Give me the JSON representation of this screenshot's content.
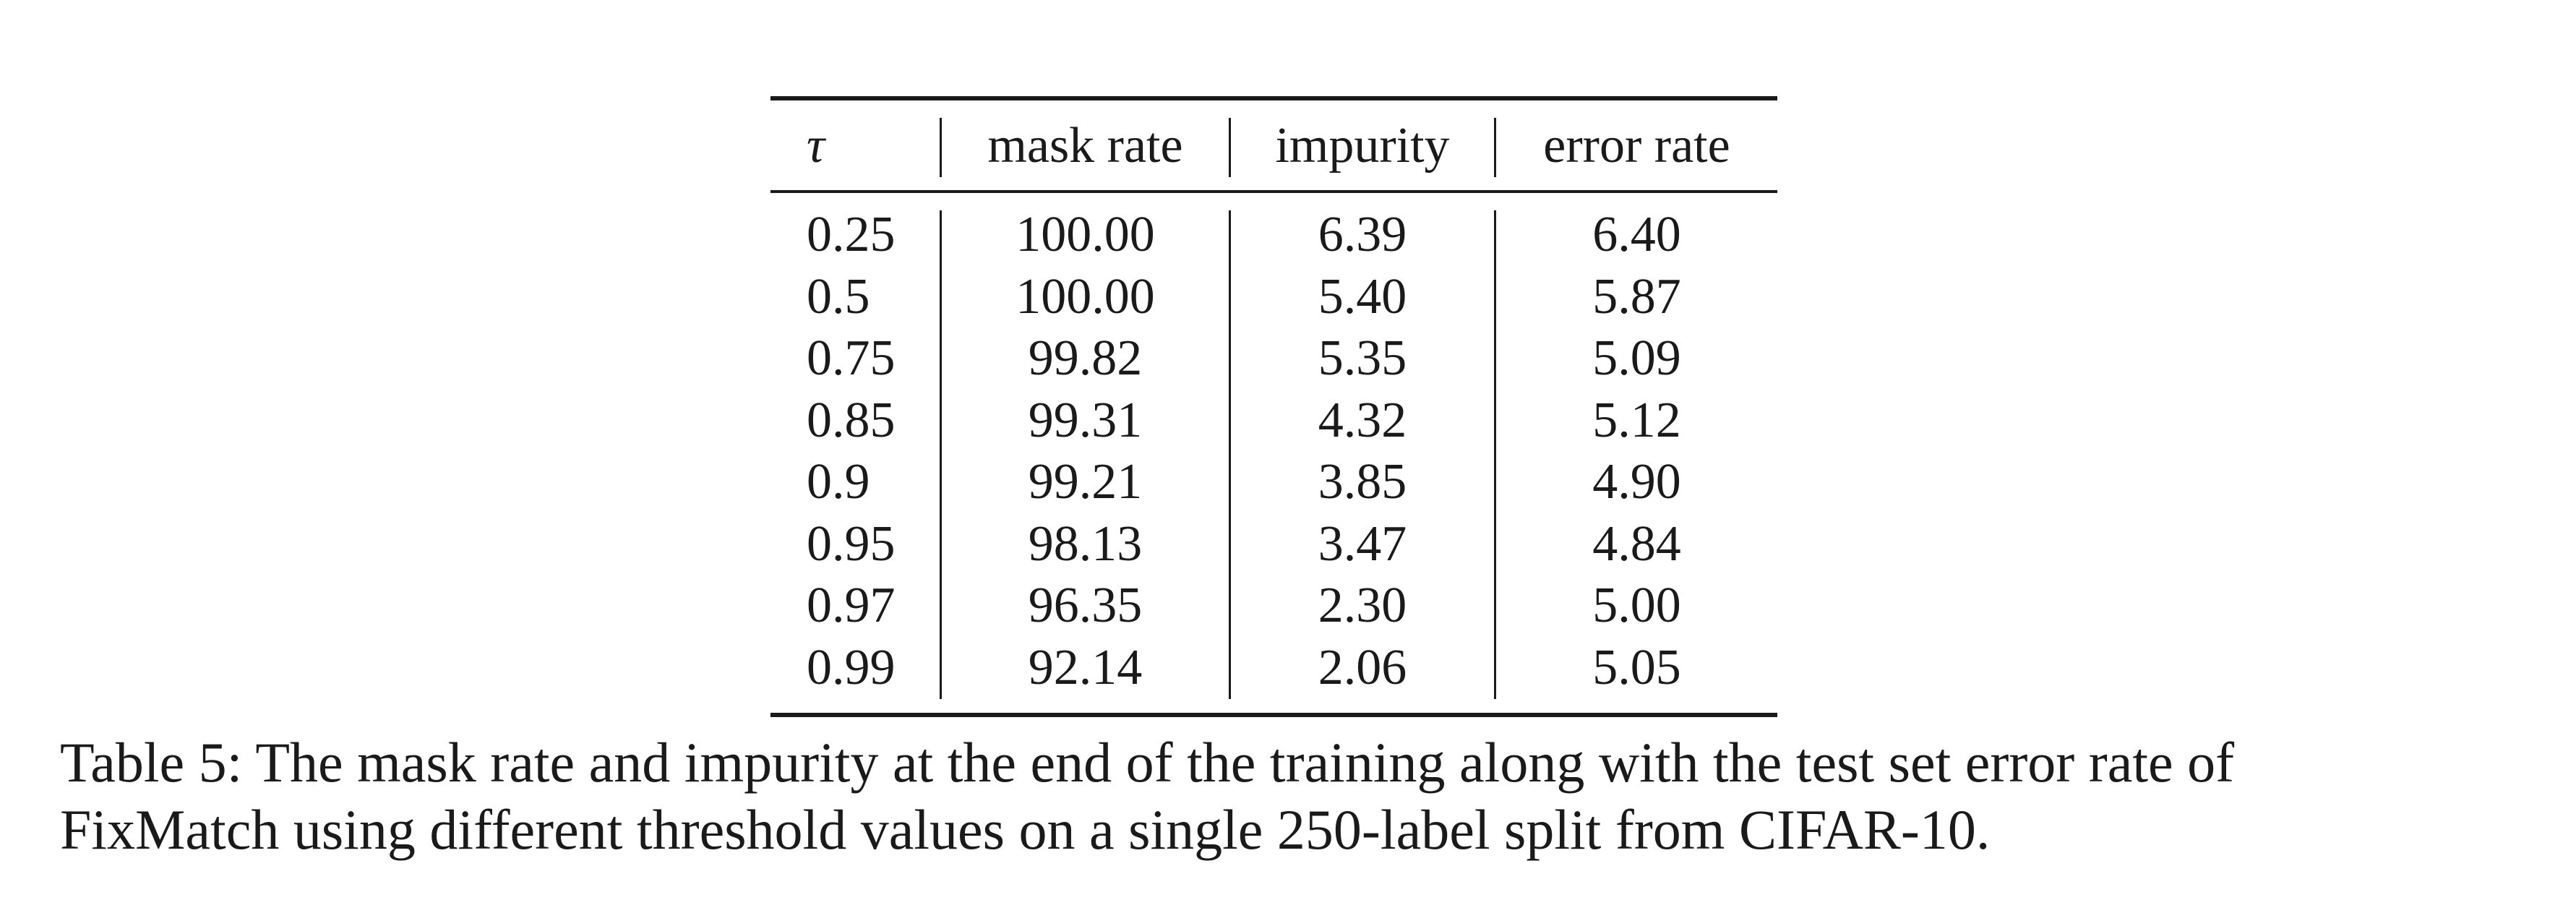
{
  "table": {
    "headers": [
      "τ",
      "mask rate",
      "impurity",
      "error rate"
    ],
    "rows": [
      [
        "0.25",
        "100.00",
        "6.39",
        "6.40"
      ],
      [
        "0.5",
        "100.00",
        "5.40",
        "5.87"
      ],
      [
        "0.75",
        "99.82",
        "5.35",
        "5.09"
      ],
      [
        "0.85",
        "99.31",
        "4.32",
        "5.12"
      ],
      [
        "0.9",
        "99.21",
        "3.85",
        "4.90"
      ],
      [
        "0.95",
        "98.13",
        "3.47",
        "4.84"
      ],
      [
        "0.97",
        "96.35",
        "2.30",
        "5.00"
      ],
      [
        "0.99",
        "92.14",
        "2.06",
        "5.05"
      ]
    ]
  },
  "caption": {
    "line1": "Table 5: The mask rate and impurity at the end of the training along with the test set error rate of",
    "line2": "FixMatch using different threshold values on a single 250-label split from CIFAR-10."
  }
}
